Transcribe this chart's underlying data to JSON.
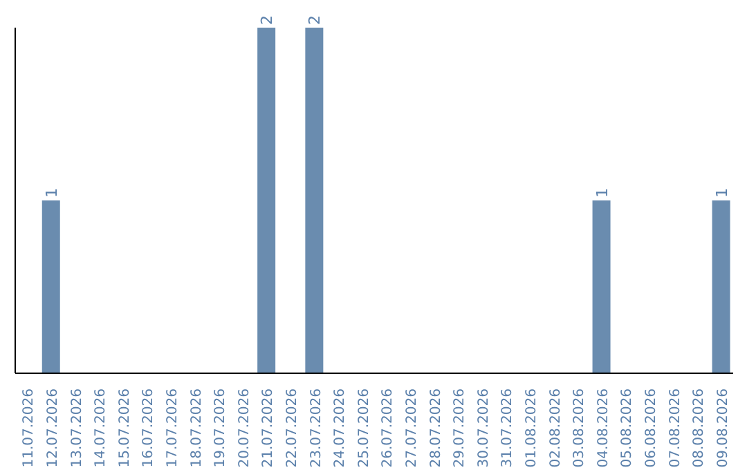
{
  "chart_data": {
    "type": "bar",
    "categories": [
      "11.07.2026",
      "12.07.2026",
      "13.07.2026",
      "14.07.2026",
      "15.07.2026",
      "16.07.2026",
      "17.07.2026",
      "18.07.2026",
      "19.07.2026",
      "20.07.2026",
      "21.07.2026",
      "22.07.2026",
      "23.07.2026",
      "24.07.2026",
      "25.07.2026",
      "26.07.2026",
      "27.07.2026",
      "28.07.2026",
      "29.07.2026",
      "30.07.2026",
      "31.07.2026",
      "01.08.2026",
      "02.08.2026",
      "03.08.2026",
      "04.08.2026",
      "05.08.2026",
      "06.08.2026",
      "07.08.2026",
      "08.08.2026",
      "09.08.2026"
    ],
    "values": [
      0,
      1,
      0,
      0,
      0,
      0,
      0,
      0,
      0,
      0,
      2,
      0,
      2,
      0,
      0,
      0,
      0,
      0,
      0,
      0,
      0,
      0,
      0,
      0,
      1,
      0,
      0,
      0,
      0,
      1
    ],
    "value_labels": [
      null,
      "1",
      null,
      null,
      null,
      null,
      null,
      null,
      null,
      null,
      "2",
      null,
      "2",
      null,
      null,
      null,
      null,
      null,
      null,
      null,
      null,
      null,
      null,
      null,
      "1",
      null,
      null,
      null,
      null,
      "1"
    ],
    "color": "#6a8caf",
    "grid": false,
    "legend": false
  }
}
